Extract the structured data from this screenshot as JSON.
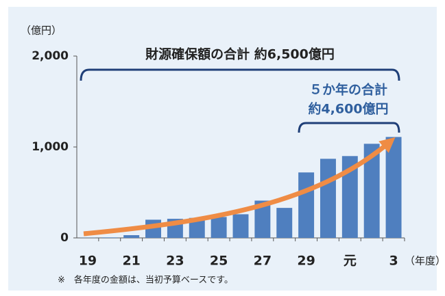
{
  "chart_data": {
    "type": "bar",
    "unit_label": "（億円）",
    "x_unit_label": "（年度）",
    "annotation_total": "財源確保額の合計 約6,500億円",
    "annotation_five_line1": "５か年の合計",
    "annotation_five_line2": "約4,600億円",
    "note": "※　各年度の金額は、当初予算ベースです。",
    "categories": [
      "19",
      null,
      "21",
      null,
      "23",
      null,
      "25",
      null,
      "27",
      null,
      "29",
      null,
      "元",
      null,
      "3"
    ],
    "values": [
      2,
      5,
      30,
      200,
      210,
      220,
      230,
      260,
      410,
      330,
      720,
      870,
      900,
      1035,
      1110
    ],
    "color": "#4f7fbf",
    "ylim": [
      0,
      2000
    ],
    "yticks": [
      0,
      {
        "value": 1000,
        "label": "1,000"
      },
      {
        "value": 2000,
        "label": "2,000"
      }
    ]
  }
}
